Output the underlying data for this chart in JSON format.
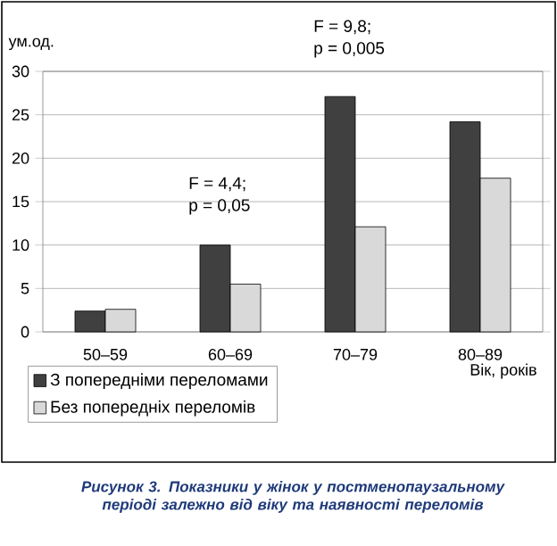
{
  "chart_data": {
    "type": "bar",
    "ylabel": "ум.од.",
    "xlabel": "Вік, років",
    "categories": [
      "50–59",
      "60–69",
      "70–79",
      "80–89"
    ],
    "series": [
      {
        "name": "З попередніми переломами",
        "color": "#404040",
        "values": [
          2.4,
          10.0,
          27.1,
          24.2
        ]
      },
      {
        "name": "Без попередніх переломів",
        "color": "#d9d9d9",
        "values": [
          2.6,
          5.5,
          12.1,
          17.7
        ]
      }
    ],
    "ylim": [
      0,
      30
    ],
    "yticks": [
      0,
      5,
      10,
      15,
      20,
      25,
      30
    ],
    "grid": "y",
    "legend": "bottom left",
    "annotations": [
      "F = 4,4;",
      "p = 0,05",
      "F = 9,8;",
      "p = 0,005",
      "Рисунок 3. Показники у жінок у постменопаузальному періоді залежно від віку та наявності переломів"
    ]
  }
}
